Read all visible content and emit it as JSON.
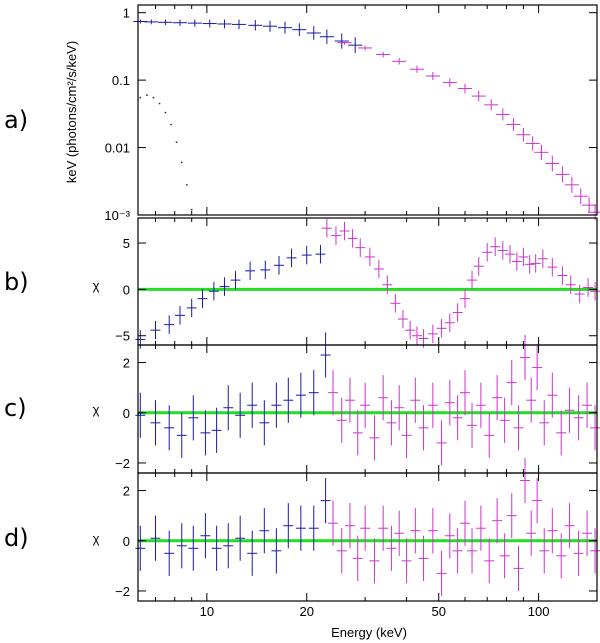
{
  "chart_data": [
    {
      "panel": "a)",
      "type": "scatter",
      "ylabel": "keV (photons/cm²/s/keV)",
      "yscale": "log",
      "xscale": "log",
      "xlim": [
        6.2,
        150
      ],
      "ylim": [
        0.001,
        1.3
      ],
      "yticks": [
        {
          "v": 1,
          "t": "1"
        },
        {
          "v": 0.1,
          "t": "0.1"
        },
        {
          "v": 0.01,
          "t": "0.01"
        },
        {
          "v": 0.001,
          "t": "10⁻³"
        }
      ],
      "series": [
        {
          "color": "#1a1aa8",
          "x": [
            6.3,
            6.8,
            7.5,
            8.3,
            9.2,
            10.2,
            11.3,
            12.5,
            14,
            15.5,
            17.2,
            19,
            21,
            23,
            25.5,
            28
          ],
          "y": [
            0.74,
            0.73,
            0.72,
            0.71,
            0.7,
            0.69,
            0.68,
            0.67,
            0.65,
            0.63,
            0.6,
            0.56,
            0.5,
            0.44,
            0.38,
            0.33
          ]
        },
        {
          "color": "#cc33cc",
          "x": [
            26,
            30,
            34,
            38,
            43,
            48,
            54,
            60,
            66,
            72,
            78,
            84,
            90,
            96,
            102,
            110,
            118,
            126,
            134,
            142,
            148
          ],
          "y": [
            0.36,
            0.3,
            0.24,
            0.19,
            0.145,
            0.115,
            0.092,
            0.075,
            0.058,
            0.043,
            0.031,
            0.022,
            0.0155,
            0.0115,
            0.0085,
            0.0058,
            0.004,
            0.0028,
            0.0019,
            0.0014,
            0.0011
          ]
        },
        {
          "color": "#333333",
          "x": [
            6.3,
            6.6,
            6.9,
            7.2,
            7.5,
            7.8,
            8.1,
            8.4,
            8.7,
            9.0
          ],
          "y": [
            0.055,
            0.06,
            0.055,
            0.045,
            0.033,
            0.022,
            0.012,
            0.006,
            0.0028,
            0.0012
          ]
        }
      ]
    },
    {
      "panel": "b)",
      "type": "scatter",
      "ylabel": "χ",
      "ylim": [
        -6,
        7.7
      ],
      "yticks": [
        {
          "v": 5,
          "t": "5"
        },
        {
          "v": 0,
          "t": "0"
        },
        {
          "v": -5,
          "t": "−5"
        }
      ],
      "zero_line_color": "#22dd22",
      "series": [
        {
          "color": "#1a1aa8",
          "x": [
            6.3,
            7,
            7.7,
            8.3,
            9,
            9.7,
            10.5,
            11.3,
            12.2,
            13.5,
            15,
            16.5,
            18,
            20,
            22
          ],
          "y": [
            -5.4,
            -4.4,
            -3.8,
            -2.8,
            -2.0,
            -1.0,
            -0.2,
            0.3,
            1.0,
            2.0,
            2.1,
            2.6,
            3.4,
            3.7,
            3.8
          ]
        },
        {
          "color": "#cc33cc",
          "x": [
            23,
            24.5,
            26,
            27.5,
            29,
            31,
            33,
            35,
            37,
            39,
            41,
            43,
            45,
            48,
            51,
            54,
            57,
            60,
            63,
            66,
            70,
            74,
            78,
            82,
            86,
            90,
            94,
            98,
            103,
            110,
            118,
            125,
            133,
            141,
            148
          ],
          "y": [
            6.6,
            5.8,
            6.3,
            5.5,
            4.5,
            3.5,
            2.2,
            0.5,
            -1.5,
            -3.2,
            -4.4,
            -5.0,
            -5.3,
            -4.8,
            -4.2,
            -3.6,
            -2.5,
            -1.0,
            1.0,
            2.5,
            4.0,
            4.6,
            4.2,
            3.8,
            3.0,
            3.5,
            2.7,
            2.8,
            3.3,
            2.4,
            1.5,
            0.5,
            -0.5,
            0.2,
            -0.2
          ]
        }
      ]
    },
    {
      "panel": "c)",
      "type": "scatter",
      "ylabel": "χ",
      "ylim": [
        -2.4,
        2.7
      ],
      "yticks": [
        {
          "v": 2,
          "t": "2"
        },
        {
          "v": 0,
          "t": "0"
        },
        {
          "v": -2,
          "t": "−2"
        }
      ],
      "zero_line_color": "#22dd22",
      "series": [
        {
          "color": "#1a1aa8",
          "x": [
            6.3,
            7,
            7.7,
            8.4,
            9.1,
            9.9,
            10.7,
            11.6,
            12.6,
            13.7,
            14.9,
            16.2,
            17.6,
            19.2,
            21,
            22.8
          ],
          "y": [
            -0.1,
            -0.4,
            -0.6,
            -0.9,
            -0.2,
            -0.8,
            -0.7,
            0.2,
            -0.1,
            0.3,
            -0.4,
            0.3,
            0.5,
            0.7,
            0.8,
            2.3
          ]
        },
        {
          "color": "#cc33cc",
          "x": [
            24,
            25.5,
            27,
            28.5,
            30,
            32,
            34,
            36,
            38,
            40,
            42.5,
            45,
            48,
            51,
            54,
            57,
            60,
            63,
            67,
            71,
            75,
            79,
            83,
            87,
            91,
            95,
            99,
            104,
            110,
            117,
            124,
            132,
            140,
            148
          ],
          "y": [
            0.8,
            -0.3,
            0.5,
            -0.8,
            0.3,
            -1.0,
            0.6,
            -0.4,
            0.2,
            -0.9,
            0.5,
            -0.6,
            0.3,
            -1.2,
            0.4,
            -0.2,
            0.8,
            -0.5,
            0.3,
            -0.9,
            0.6,
            -0.3,
            1.2,
            -0.6,
            2.2,
            0.5,
            1.8,
            -0.4,
            0.7,
            -0.8,
            0.1,
            -0.2,
            0.3,
            -0.6
          ]
        }
      ]
    },
    {
      "panel": "d)",
      "type": "scatter",
      "xlabel": "Energy (keV)",
      "ylabel": "χ",
      "ylim": [
        -2.4,
        2.7
      ],
      "yticks": [
        {
          "v": 2,
          "t": "2"
        },
        {
          "v": 0,
          "t": "0"
        },
        {
          "v": -2,
          "t": "−2"
        }
      ],
      "xticks": [
        {
          "v": 10,
          "t": "10"
        },
        {
          "v": 20,
          "t": "20"
        },
        {
          "v": 50,
          "t": "50"
        },
        {
          "v": 100,
          "t": "100"
        }
      ],
      "zero_line_color": "#22dd22",
      "series": [
        {
          "color": "#1a1aa8",
          "x": [
            6.3,
            7,
            7.7,
            8.4,
            9.1,
            9.9,
            10.7,
            11.6,
            12.6,
            13.7,
            14.9,
            16.2,
            17.6,
            19.2,
            21,
            22.8
          ],
          "y": [
            -0.3,
            0.1,
            -0.5,
            -0.2,
            -0.3,
            0.2,
            -0.3,
            -0.2,
            0.1,
            -0.5,
            0.4,
            -0.4,
            0.6,
            0.5,
            0.5,
            1.6
          ]
        },
        {
          "color": "#cc33cc",
          "x": [
            24,
            25.5,
            27,
            28.5,
            30,
            32,
            34,
            36,
            38,
            40,
            42.5,
            45,
            48,
            51,
            54,
            57,
            60,
            63,
            67,
            71,
            75,
            79,
            83,
            87,
            91,
            95,
            99,
            104,
            110,
            117,
            124,
            132,
            140,
            148
          ],
          "y": [
            0.7,
            -0.4,
            0.6,
            -0.7,
            0.5,
            -0.8,
            0.5,
            -0.3,
            0.3,
            -0.8,
            0.4,
            -0.7,
            0.4,
            -1.3,
            0.2,
            -0.4,
            0.7,
            -0.4,
            0.5,
            -0.8,
            0.8,
            -0.6,
            1.0,
            -1.1,
            2.4,
            0.3,
            1.6,
            -0.4,
            0.4,
            -0.6,
            0.6,
            -0.5,
            0.3,
            -0.4
          ]
        }
      ]
    }
  ]
}
